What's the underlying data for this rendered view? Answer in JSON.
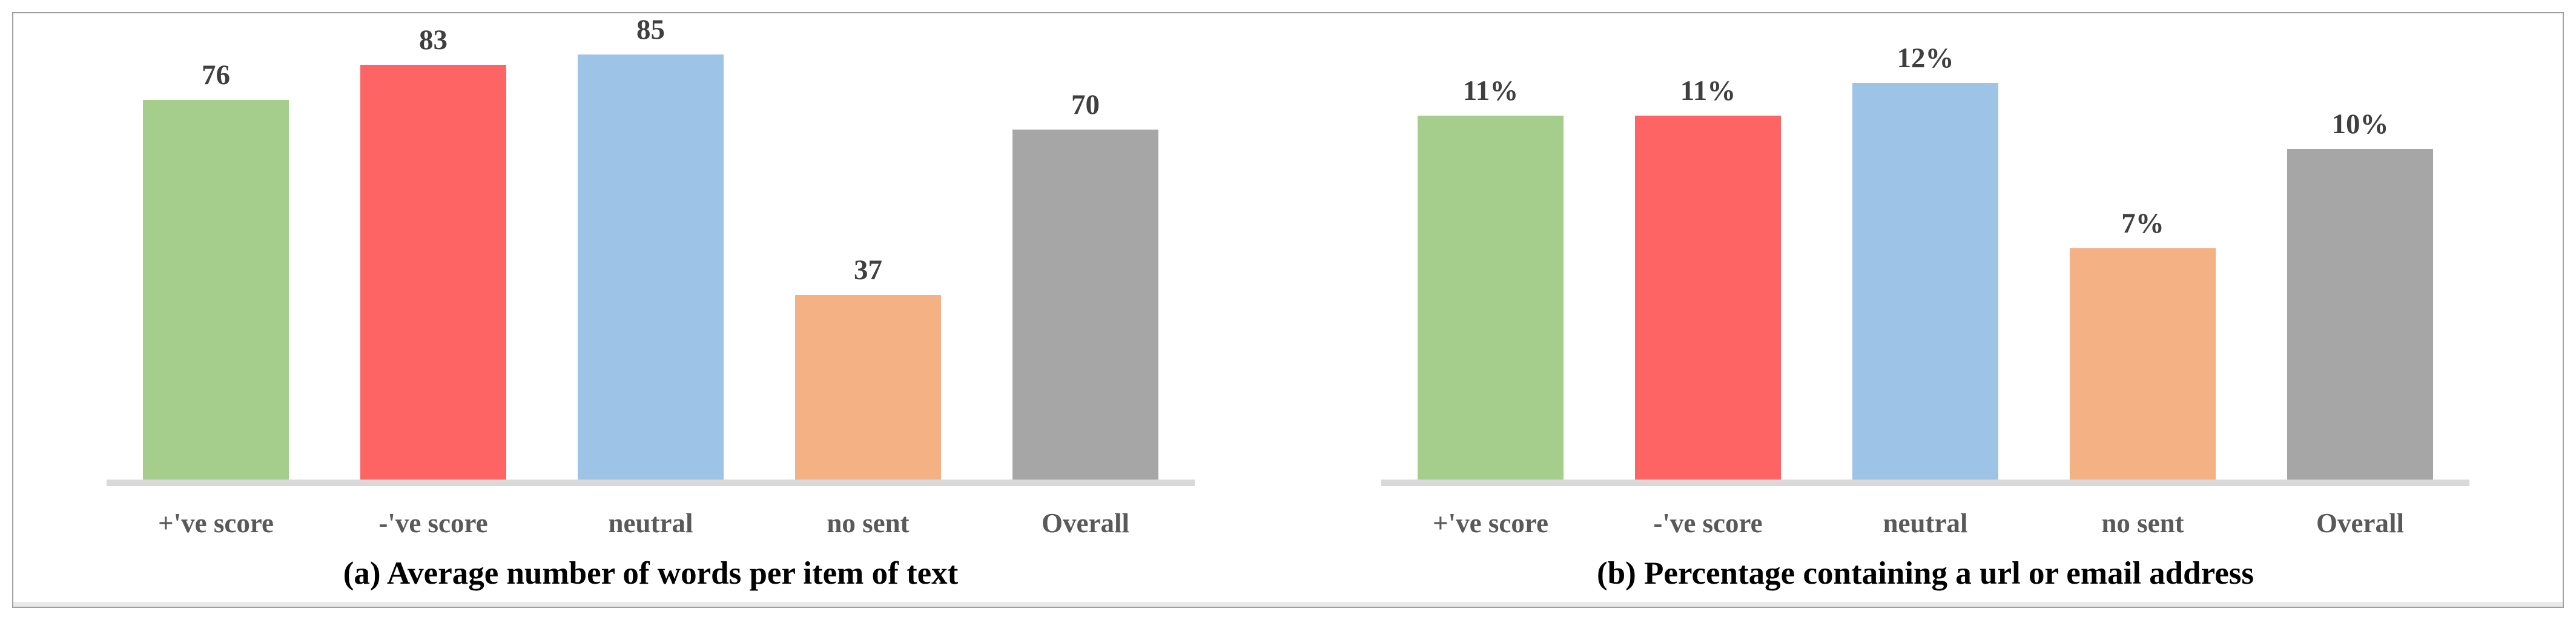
{
  "figure": {
    "background": "#ffffff",
    "border_color": "#a0a0a0",
    "baseline_color": "#d9d9d9",
    "bottom_strip_color": "#e9e9e9",
    "value_label_color": "#3f3f3f",
    "category_label_color": "#595959",
    "caption_color": "#000000"
  },
  "chart_data": [
    {
      "type": "bar",
      "caption": "(a) Average number of words per item of text",
      "categories": [
        "+'ve score",
        "-'ve score",
        "neutral",
        "no sent",
        "Overall"
      ],
      "values": [
        76,
        83,
        85,
        37,
        70
      ],
      "value_labels": [
        "76",
        "83",
        "85",
        "37",
        "70"
      ],
      "colors": [
        "#a5ce8d",
        "#fe6464",
        "#9dc3e6",
        "#f4b183",
        "#a6a6a6"
      ],
      "xlabel": "",
      "ylabel": "",
      "ylim": [
        0,
        86
      ],
      "grid": false,
      "legend": "none",
      "yaxis_visible": false,
      "data_labels": "above bars"
    },
    {
      "type": "bar",
      "caption": "(b) Percentage containing a url or email address",
      "categories": [
        "+'ve score",
        "-'ve score",
        "neutral",
        "no sent",
        "Overall"
      ],
      "values": [
        11,
        11,
        12,
        7,
        10
      ],
      "value_labels": [
        "11%",
        "11%",
        "12%",
        "7%",
        "10%"
      ],
      "colors": [
        "#a5ce8d",
        "#fe6464",
        "#9dc3e6",
        "#f4b183",
        "#a6a6a6"
      ],
      "xlabel": "",
      "ylabel": "",
      "ylim": [
        0,
        13
      ],
      "grid": false,
      "legend": "none",
      "yaxis_visible": false,
      "data_labels": "above bars"
    }
  ]
}
